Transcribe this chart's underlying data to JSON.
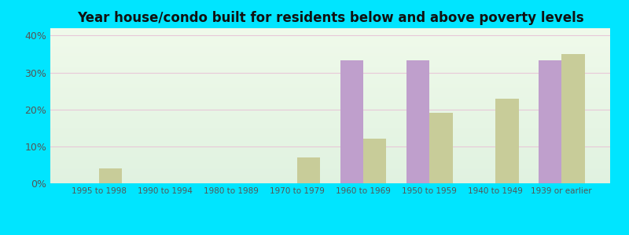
{
  "categories": [
    "1995 to 1998",
    "1990 to 1994",
    "1980 to 1989",
    "1970 to 1979",
    "1960 to 1969",
    "1950 to 1959",
    "1940 to 1949",
    "1939 or earlier"
  ],
  "below_poverty": [
    0,
    0,
    0,
    0,
    33.3,
    33.3,
    0,
    33.3
  ],
  "above_poverty": [
    4.0,
    0,
    0,
    7.0,
    12.0,
    19.0,
    23.0,
    35.0
  ],
  "below_color": "#bf9fcc",
  "above_color": "#c8cc99",
  "title": "Year house/condo built for residents below and above poverty levels",
  "title_fontsize": 12,
  "ylim": [
    0,
    42
  ],
  "yticks": [
    0,
    10,
    20,
    30,
    40
  ],
  "ytick_labels": [
    "0%",
    "10%",
    "20%",
    "30%",
    "40%"
  ],
  "bar_width": 0.35,
  "outer_bg": "#00e5ff",
  "grid_color": "#e8c8d8",
  "tick_color": "#555555"
}
